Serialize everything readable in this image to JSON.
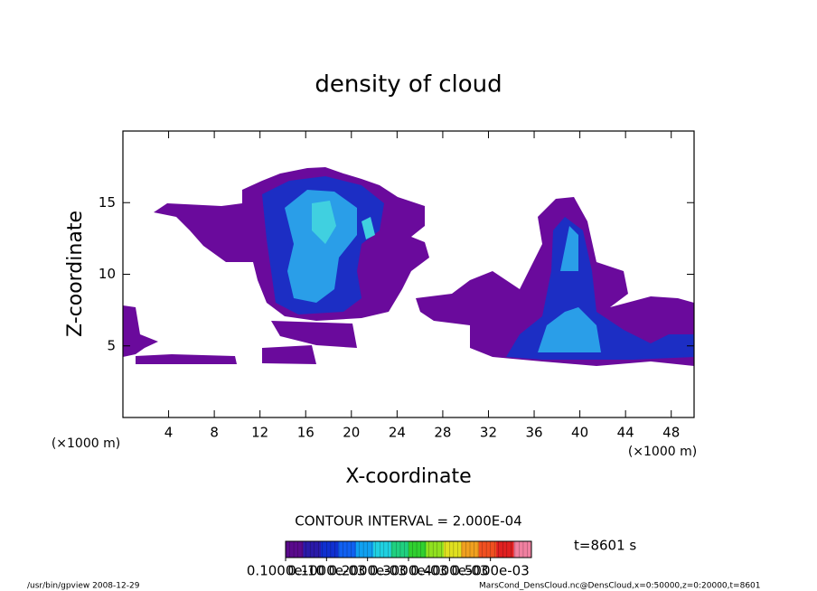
{
  "chart_data": {
    "type": "contour",
    "title": "density of cloud",
    "xlabel": "X-coordinate",
    "ylabel": "Z-coordinate",
    "x_unit_left": "(×1000 m)",
    "x_unit_right": "(×1000 m)",
    "xlim": [
      0,
      50
    ],
    "xticks": [
      4,
      8,
      12,
      16,
      20,
      24,
      28,
      32,
      36,
      40,
      44,
      48
    ],
    "ylim": [
      0,
      20
    ],
    "yticks": [
      5,
      10,
      15
    ],
    "contour_interval": "CONTOUR INTERVAL = 2.000E-04",
    "time_label": "t=8601 s",
    "colorbar_lim": [
      0,
      0.0006
    ],
    "colorbar_ticks": [
      {
        "value": 1e-11,
        "label": "0.1000e-10"
      },
      {
        "value": 0.0001,
        "label": "0.1000e-03"
      },
      {
        "value": 0.0002,
        "label": "0.2000e-03"
      },
      {
        "value": 0.0003,
        "label": "0.3000e-03"
      },
      {
        "value": 0.0004,
        "label": "0.4000e-03"
      },
      {
        "value": 0.0005,
        "label": "0.5000e-03"
      }
    ],
    "colormap": [
      "#5a0a8c",
      "#2a1aa8",
      "#1030d0",
      "#1060f0",
      "#10a0f0",
      "#20d0e0",
      "#20d080",
      "#30d030",
      "#90e020",
      "#e0e020",
      "#f0a020",
      "#f05020",
      "#e02020",
      "#f080a0"
    ],
    "footer_left": "/usr/bin/gpview  2008-12-29",
    "footer_right": "MarsCond_DensCloud.nc@DensCloud,x=0:50000,z=0:20000,t=8601"
  }
}
